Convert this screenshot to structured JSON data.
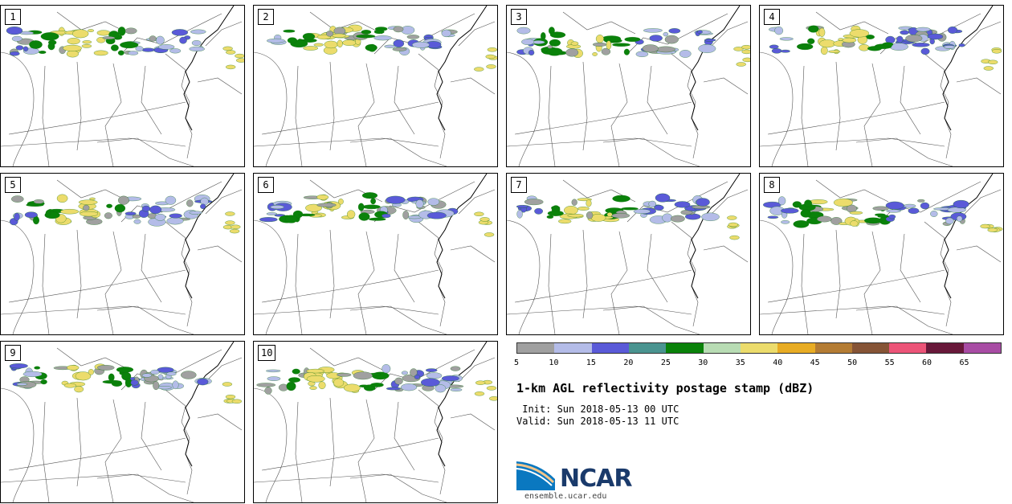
{
  "panels": [
    {
      "label": "1"
    },
    {
      "label": "2"
    },
    {
      "label": "3"
    },
    {
      "label": "4"
    },
    {
      "label": "5"
    },
    {
      "label": "6"
    },
    {
      "label": "7"
    },
    {
      "label": "8"
    },
    {
      "label": "9"
    },
    {
      "label": "10"
    }
  ],
  "colorbar": {
    "colors": [
      "#a0a0a0",
      "#b4bce8",
      "#5a5ad8",
      "#4a9490",
      "#0a820a",
      "#b8dcb4",
      "#ecdc6c",
      "#e8ac24",
      "#b47c34",
      "#865436",
      "#ec5478",
      "#68183a",
      "#a84ca4"
    ],
    "ticks": [
      "5",
      "10",
      "15",
      "20",
      "25",
      "30",
      "35",
      "40",
      "45",
      "50",
      "55",
      "60",
      "65"
    ]
  },
  "title": "1-km AGL reflectivity postage stamp (dBZ)",
  "init": " Init: Sun 2018-05-13 00 UTC",
  "valid": "Valid: Sun 2018-05-13 11 UTC",
  "logo": {
    "text": "NCAR",
    "url": "ensemble.ucar.edu"
  }
}
